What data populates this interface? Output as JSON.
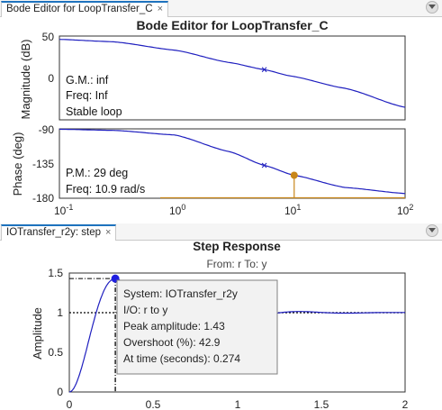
{
  "bode_tab": {
    "label": "Bode Editor for LoopTransfer_C",
    "close": "×"
  },
  "step_tab": {
    "label": "IOTransfer_r2y: step",
    "close": "×"
  },
  "bode": {
    "title": "Bode Editor for LoopTransfer_C",
    "mag_ylabel": "Magnitude (dB)",
    "phase_ylabel": "Phase (deg)",
    "mag_ticks": [
      "50",
      "0"
    ],
    "phase_ticks": [
      "-90",
      "-135",
      "-180"
    ],
    "x_ticks": [
      {
        "base": "10",
        "exp": "-1"
      },
      {
        "base": "10",
        "exp": "0"
      },
      {
        "base": "10",
        "exp": "1"
      },
      {
        "base": "10",
        "exp": "2"
      }
    ],
    "gm_lines": [
      "G.M.: inf",
      "Freq: Inf",
      "Stable loop"
    ],
    "pm_lines": [
      "P.M.: 29 deg",
      "Freq: 10.9 rad/s"
    ]
  },
  "step": {
    "title": "Step Response",
    "subtitle": "From: r  To: y",
    "ylabel": "Amplitude",
    "y_ticks": [
      "1.5",
      "1",
      "0.5",
      "0"
    ],
    "x_ticks": [
      "0",
      "0.5",
      "1",
      "1.5",
      "2"
    ],
    "tooltip": [
      "System:  IOTransfer_r2y",
      "I/O:  r  to  y",
      "Peak amplitude:  1.43",
      "Overshoot  (%):  42.9",
      "At time  (seconds):  0.274"
    ]
  },
  "colors": {
    "curve": "#1f1fbf",
    "marker": "#c8861a",
    "peak": "#1f1fe0",
    "accent": "#1e73be"
  },
  "chart_data": [
    {
      "type": "line",
      "title": "Bode Editor for LoopTransfer_C",
      "xscale": "log",
      "xlim": [
        0.1,
        100
      ],
      "panels": [
        {
          "ylabel": "Magnitude (dB)",
          "ylim": [
            -40,
            50
          ],
          "x": [
            0.1,
            0.3,
            1,
            3,
            6,
            10,
            30,
            100
          ],
          "y": [
            46,
            43,
            33,
            18,
            9.5,
            2,
            -13,
            -36
          ]
        },
        {
          "ylabel": "Phase (deg)",
          "ylim": [
            -180,
            -90
          ],
          "x": [
            0.1,
            0.3,
            1,
            3,
            6,
            10.9,
            30,
            100
          ],
          "y": [
            -90.5,
            -92,
            -98,
            -120,
            -138,
            -151,
            -167,
            -175
          ]
        }
      ],
      "margins": {
        "gain_margin": "inf",
        "gain_freq": "Inf",
        "phase_margin_deg": 29,
        "phase_freq_rad_s": 10.9
      }
    },
    {
      "type": "line",
      "title": "Step Response",
      "subtitle": "From: r  To: y",
      "ylabel": "Amplitude",
      "xlim": [
        0,
        2
      ],
      "ylim": [
        0,
        1.5
      ],
      "x": [
        0,
        0.05,
        0.1,
        0.15,
        0.2,
        0.274,
        0.35,
        0.45,
        0.55,
        0.65,
        0.75,
        0.85,
        1.0,
        1.2,
        1.5,
        2.0
      ],
      "y": [
        0,
        0.12,
        0.55,
        1.02,
        1.32,
        1.43,
        1.32,
        0.96,
        0.77,
        0.82,
        0.96,
        1.05,
        1.02,
        0.98,
        1.0,
        1.0
      ],
      "peak": {
        "time": 0.274,
        "amplitude": 1.43,
        "overshoot_pct": 42.9
      },
      "final_value": 1
    }
  ]
}
